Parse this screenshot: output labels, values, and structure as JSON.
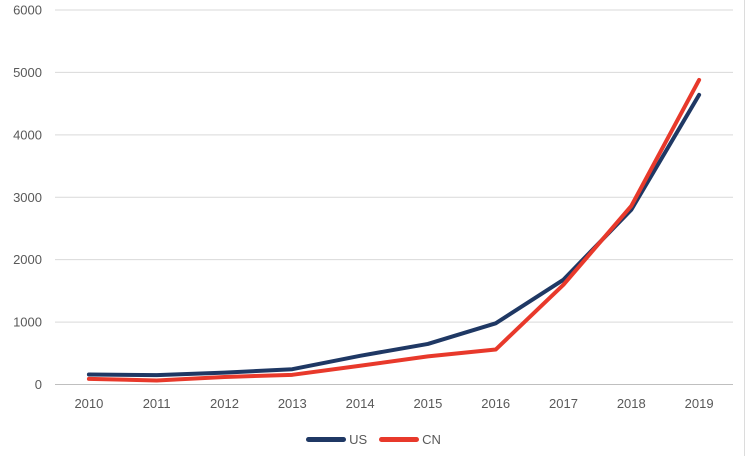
{
  "chart_data": {
    "type": "line",
    "categories": [
      "2010",
      "2011",
      "2012",
      "2013",
      "2014",
      "2015",
      "2016",
      "2017",
      "2018",
      "2019"
    ],
    "series": [
      {
        "name": "US",
        "color": "#1f3864",
        "values": [
          160,
          150,
          190,
          245,
          460,
          650,
          980,
          1680,
          2800,
          4640
        ]
      },
      {
        "name": "CN",
        "color": "#e8392b",
        "values": [
          90,
          65,
          120,
          155,
          300,
          450,
          560,
          1600,
          2860,
          4880
        ]
      }
    ],
    "title": "",
    "xlabel": "",
    "ylabel": "",
    "ylim": [
      0,
      6000
    ],
    "yticks": [
      "0",
      "1000",
      "2000",
      "3000",
      "4000",
      "5000",
      "6000"
    ],
    "grid": "horizontal",
    "legend_position": "bottom",
    "colors": {
      "grid_color": "#d9d9d9",
      "axis_color": "#bfbfbf",
      "label_color": "#595959",
      "background": "#ffffff"
    }
  }
}
